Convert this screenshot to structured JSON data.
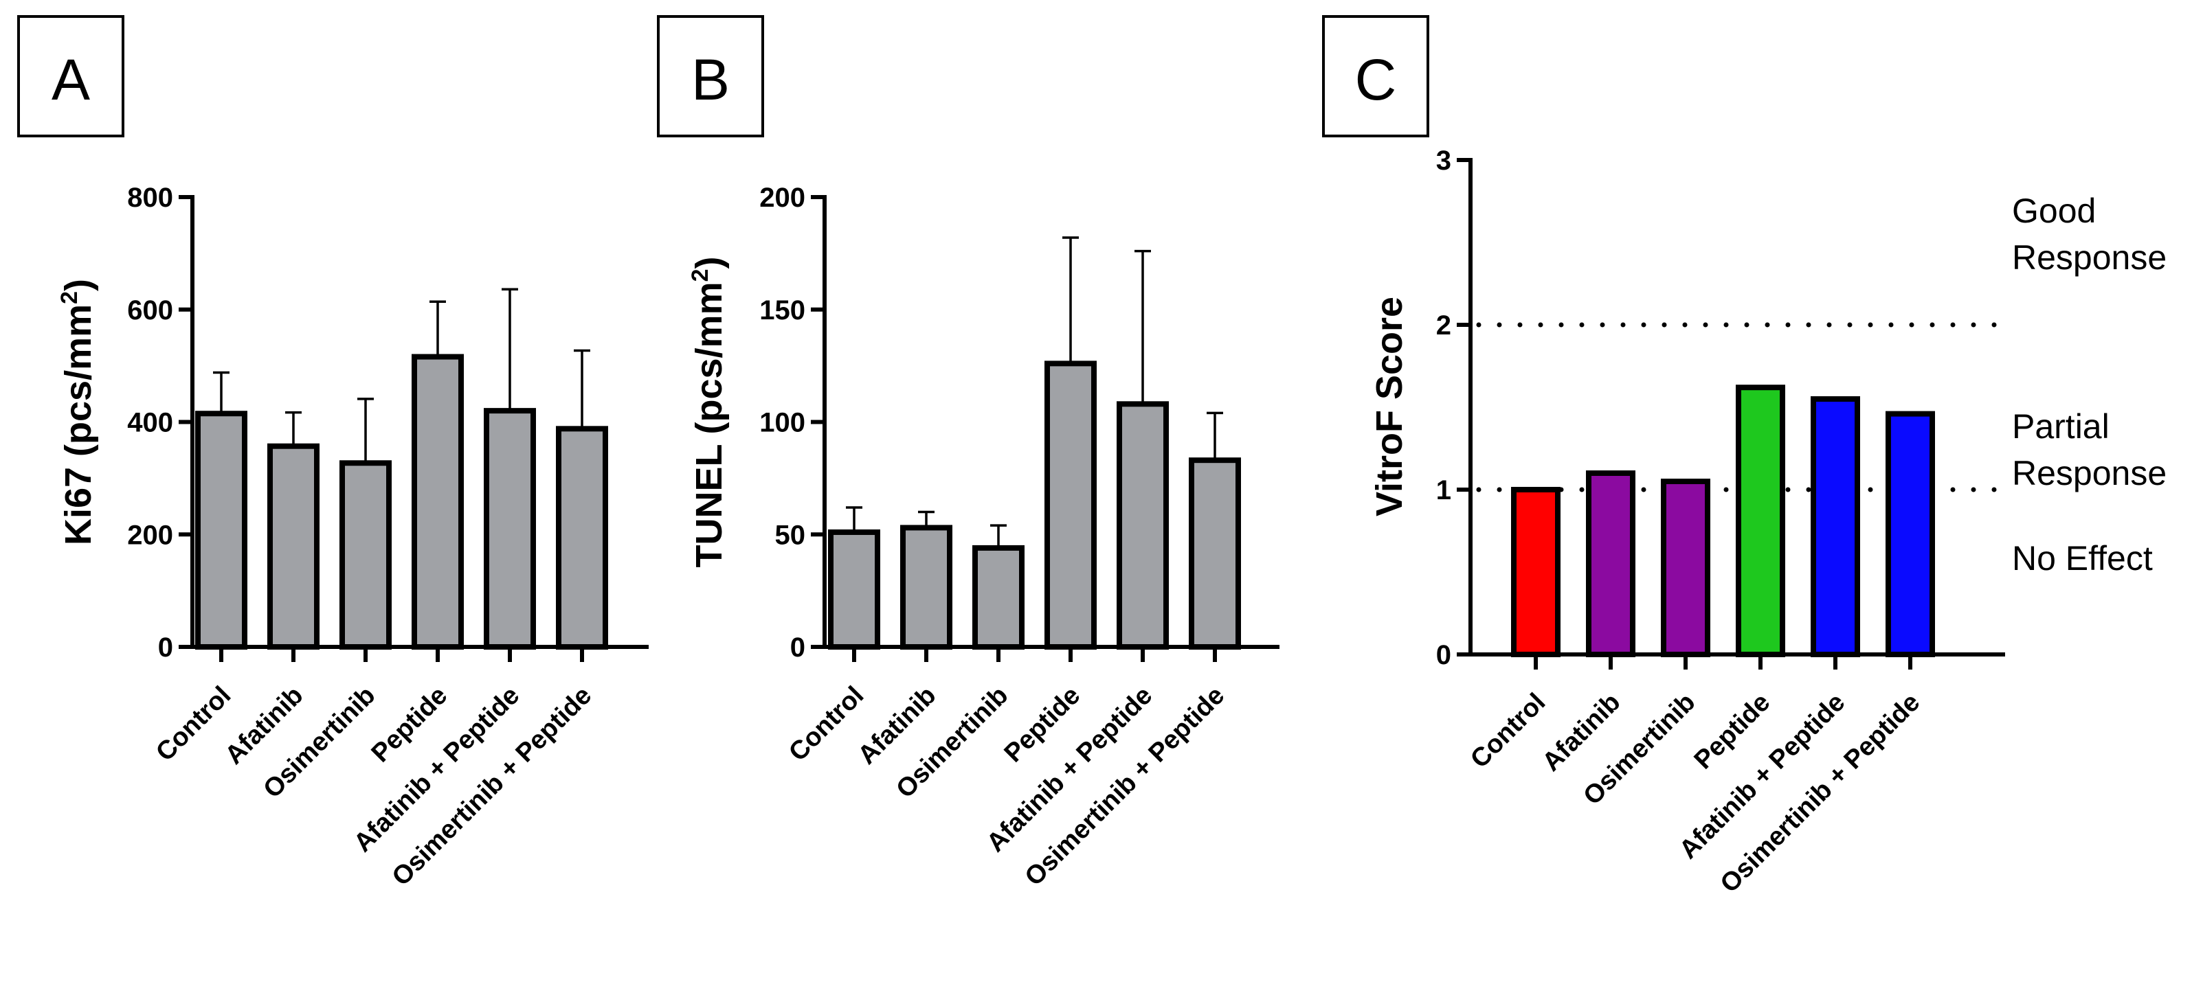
{
  "chart_data": [
    {
      "panel": "A",
      "type": "bar",
      "title": "",
      "xlabel": "",
      "ylabel": "Ki67 (pcs/mm",
      "ylabel_superscript": "2",
      "ylabel_suffix": ")",
      "ylim": [
        0,
        800
      ],
      "yticks": [
        0,
        200,
        400,
        600,
        800
      ],
      "grid": false,
      "categories": [
        "Control",
        "Afatinib",
        "Osimertinib",
        "Peptide",
        "Afatinib + Peptide",
        "Osimertinib + Peptide"
      ],
      "values": [
        415,
        357,
        327,
        516,
        420,
        388
      ],
      "error_upper": [
        488,
        417,
        441,
        614,
        636,
        527
      ],
      "colors": [
        "#a0a2a6",
        "#a0a2a6",
        "#a0a2a6",
        "#a0a2a6",
        "#a0a2a6",
        "#a0a2a6"
      ]
    },
    {
      "panel": "B",
      "type": "bar",
      "title": "",
      "xlabel": "",
      "ylabel": "TUNEL (pcs/mm",
      "ylabel_superscript": "2",
      "ylabel_suffix": ")",
      "ylim": [
        0,
        200
      ],
      "yticks": [
        0,
        50,
        100,
        150,
        200
      ],
      "grid": false,
      "categories": [
        "Control",
        "Afatinib",
        "Osimertinib",
        "Peptide",
        "Afatinib + Peptide",
        "Osimertinib + Peptide"
      ],
      "values": [
        51,
        53,
        44,
        126,
        108,
        83
      ],
      "error_upper": [
        62,
        60,
        54,
        182,
        176,
        104
      ],
      "colors": [
        "#a0a2a6",
        "#a0a2a6",
        "#a0a2a6",
        "#a0a2a6",
        "#a0a2a6",
        "#a0a2a6"
      ]
    },
    {
      "panel": "C",
      "type": "bar",
      "title": "",
      "xlabel": "",
      "ylabel": "VitroF Score",
      "ylim": [
        0,
        3
      ],
      "yticks": [
        0,
        1,
        2,
        3
      ],
      "grid": false,
      "categories": [
        "Control",
        "Afatinib",
        "Osimertinib",
        "Peptide",
        "Afatinib + Peptide",
        "Osimertinib + Peptide"
      ],
      "values": [
        1.0,
        1.1,
        1.05,
        1.62,
        1.55,
        1.46
      ],
      "colors": [
        "#ff0000",
        "#8b0aa0",
        "#8b0aa0",
        "#1ec81e",
        "#0a0aff",
        "#0a0aff"
      ],
      "reference_lines": [
        1,
        2
      ],
      "zone_labels": [
        {
          "line1": "Good",
          "line2": "Response"
        },
        {
          "line1": "Partial",
          "line2": "Response"
        },
        {
          "line1": "No Effect",
          "line2": ""
        }
      ]
    }
  ]
}
